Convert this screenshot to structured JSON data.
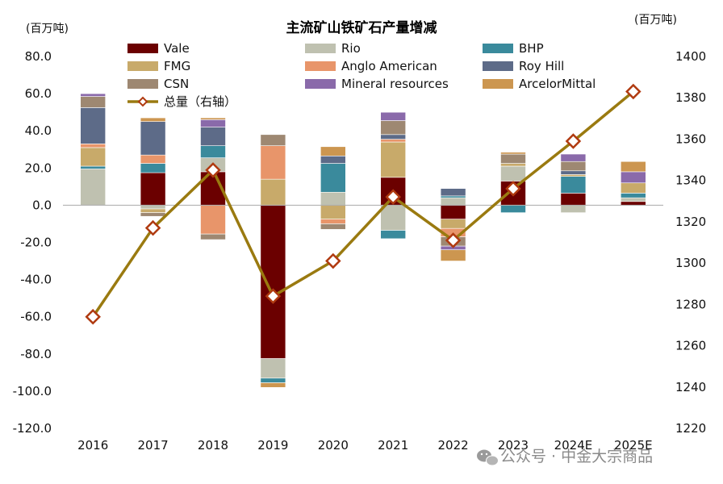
{
  "chart_data": {
    "type": "bar",
    "subtype": "stacked-bar-with-line",
    "title": "主流矿山铁矿石产量增减",
    "left_axis_unit": "(百万吨)",
    "right_axis_unit": "(百万吨)",
    "categories": [
      "2016",
      "2017",
      "2018",
      "2019",
      "2020",
      "2021",
      "2022",
      "2023",
      "2024E",
      "2025E"
    ],
    "left_ylim": [
      -120,
      80
    ],
    "left_ticks": [
      "80.0",
      "60.0",
      "40.0",
      "20.0",
      "0.0",
      "-20.0",
      "-40.0",
      "-60.0",
      "-80.0",
      "-100.0",
      "-120.0"
    ],
    "right_ylim": [
      1220,
      1400
    ],
    "right_ticks": [
      "1400",
      "1380",
      "1360",
      "1340",
      "1320",
      "1300",
      "1280",
      "1260",
      "1240",
      "1220"
    ],
    "series": [
      {
        "name": "Vale",
        "color": "#6b0000",
        "values": [
          0,
          17.5,
          18,
          -82.5,
          0,
          15,
          -7.5,
          13,
          6.5,
          2
        ]
      },
      {
        "name": "Rio",
        "color": "#bfc1b0",
        "values": [
          19.5,
          -2,
          7.5,
          -10.5,
          7,
          -13.5,
          4,
          8,
          -4,
          2
        ]
      },
      {
        "name": "BHP",
        "color": "#3a8a9c",
        "values": [
          1.5,
          5,
          6.5,
          -2.5,
          15.5,
          -4.5,
          1,
          -4,
          9,
          2.5
        ]
      },
      {
        "name": "FMG",
        "color": "#c8aa6a",
        "values": [
          10,
          -2,
          0,
          14,
          -7.5,
          19,
          -5,
          1.5,
          1,
          5.5
        ]
      },
      {
        "name": "Anglo American",
        "color": "#e8956a",
        "values": [
          2,
          4.5,
          -15.5,
          18,
          -2.5,
          1.5,
          -4.5,
          0,
          0,
          0
        ]
      },
      {
        "name": "Roy Hill",
        "color": "#5d6b88",
        "values": [
          19.5,
          18,
          10,
          0,
          4,
          2.5,
          4,
          0,
          2,
          0
        ]
      },
      {
        "name": "CSN",
        "color": "#9e8872",
        "values": [
          6,
          -2,
          -3,
          6,
          -3,
          7.5,
          -5,
          5,
          5,
          0
        ]
      },
      {
        "name": "Mineral resources",
        "color": "#8a6aaa",
        "values": [
          1.5,
          0,
          4,
          0,
          0,
          4.5,
          -2,
          0,
          4,
          6
        ]
      },
      {
        "name": "ArcelorMittal",
        "color": "#cc9650",
        "values": [
          0,
          2,
          1,
          -2.5,
          5,
          0,
          -6,
          1,
          0,
          5.5
        ]
      }
    ],
    "line": {
      "name": "总量（右轴）",
      "color": "#9a7a10",
      "values": [
        1274,
        1317,
        1345,
        1284,
        1301,
        1332,
        1311,
        1336,
        1359,
        1383
      ]
    }
  },
  "watermark": {
    "icon": "wechat-icon",
    "text": "公众号 · 中金大宗商品"
  }
}
